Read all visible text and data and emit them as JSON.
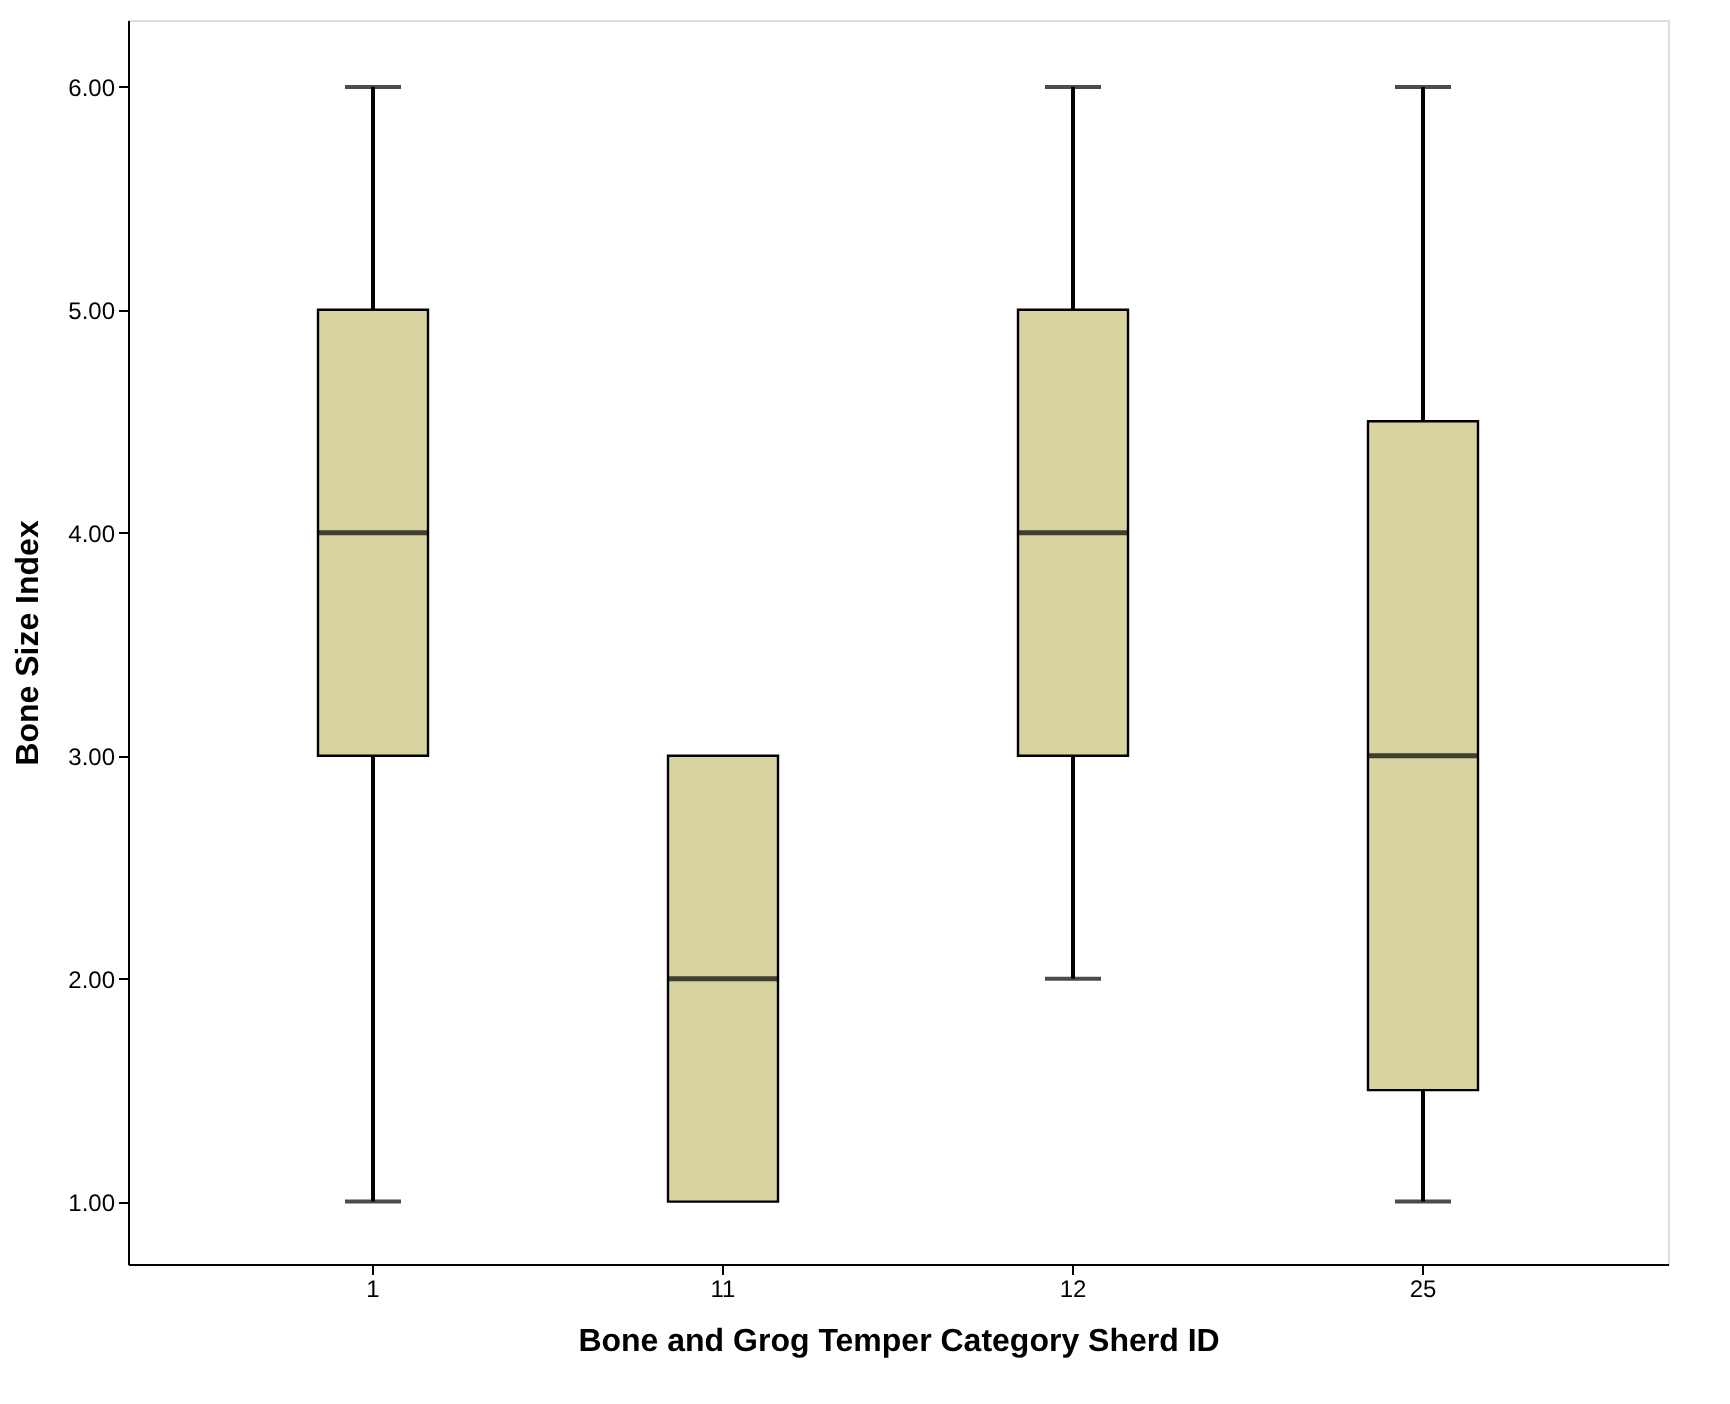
{
  "chart_data": {
    "type": "box",
    "xlabel": "Bone and Grog Temper Category Sherd ID",
    "ylabel": "Bone Size Index",
    "categories": [
      "1",
      "11",
      "12",
      "25"
    ],
    "boxes": [
      {
        "low": 1,
        "q1": 3,
        "median": 4,
        "q3": 5,
        "high": 6
      },
      {
        "low": 1,
        "q1": 1,
        "median": 2,
        "q3": 3,
        "high": 3
      },
      {
        "low": 2,
        "q1": 3,
        "median": 4,
        "q3": 5,
        "high": 6
      },
      {
        "low": 1,
        "q1": 1.5,
        "median": 3,
        "q3": 4.5,
        "high": 6
      }
    ],
    "color": "#d8d3a0",
    "ylim": [
      0.72,
      6.3
    ],
    "yticks": [
      {
        "value": 1,
        "label": "1.00"
      },
      {
        "value": 2,
        "label": "2.00"
      },
      {
        "value": 3,
        "label": "3.00"
      },
      {
        "value": 4,
        "label": "4.00"
      },
      {
        "value": 5,
        "label": "5.00"
      },
      {
        "value": 6,
        "label": "6.00"
      }
    ],
    "grid": false
  }
}
